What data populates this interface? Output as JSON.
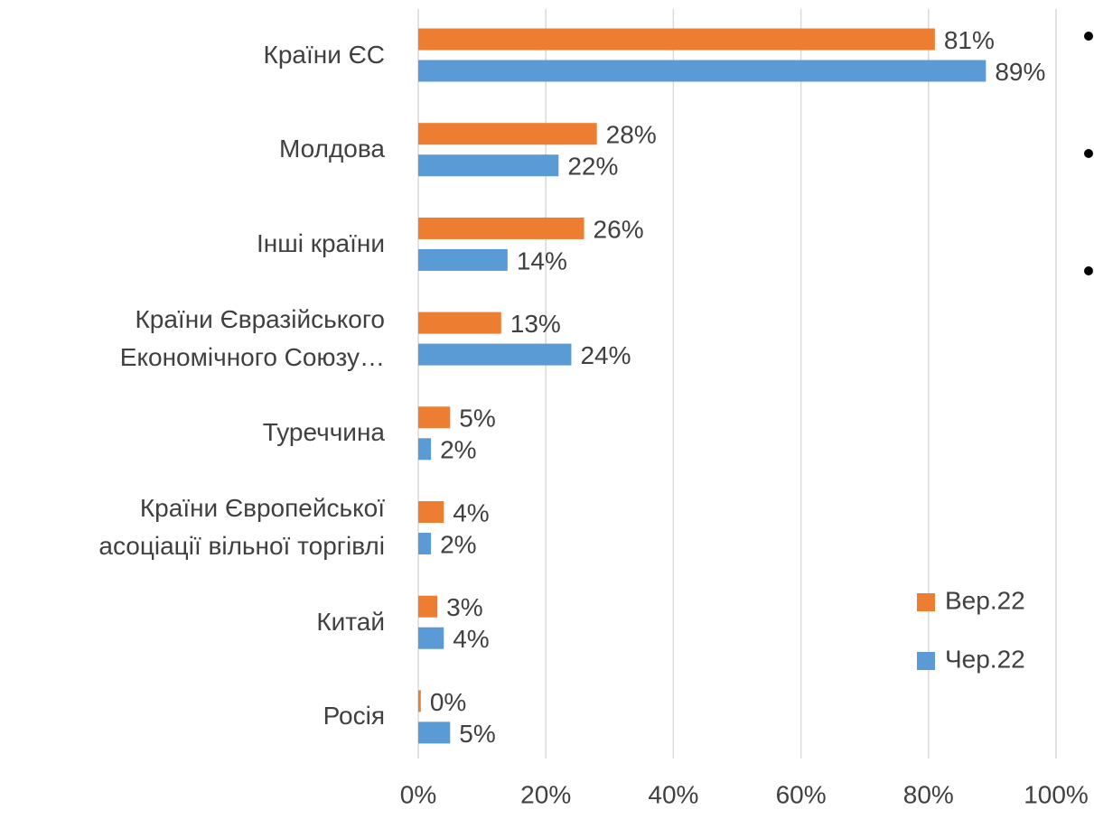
{
  "chart_data": {
    "type": "bar",
    "orientation": "horizontal",
    "categories": [
      "Країни ЄС",
      "Молдова",
      "Інші країни",
      "Країни Євразійського\nЕкономічного Союзу…",
      "Туреччина",
      "Країни Європейської\nасоціації вільної торгівлі",
      "Китай",
      "Росія"
    ],
    "series": [
      {
        "name": "Вер.22",
        "color": "#ed7d31",
        "values": [
          81,
          28,
          26,
          13,
          5,
          4,
          3,
          0.4
        ],
        "value_labels": [
          "81%",
          "28%",
          "26%",
          "13%",
          "5%",
          "4%",
          "3%",
          "0%"
        ]
      },
      {
        "name": "Чер.22",
        "color": "#5b9bd5",
        "values": [
          89,
          22,
          14,
          24,
          2,
          2,
          4,
          5
        ],
        "value_labels": [
          "89%",
          "22%",
          "14%",
          "24%",
          "2%",
          "2%",
          "4%",
          "5%"
        ]
      }
    ],
    "xlim": [
      0,
      100
    ],
    "xticks": [
      {
        "value": 0,
        "label": "0%"
      },
      {
        "value": 20,
        "label": "20%"
      },
      {
        "value": 40,
        "label": "40%"
      },
      {
        "value": 60,
        "label": "60%"
      },
      {
        "value": 80,
        "label": "80%"
      },
      {
        "value": 100,
        "label": "100%"
      }
    ],
    "grid": true
  }
}
